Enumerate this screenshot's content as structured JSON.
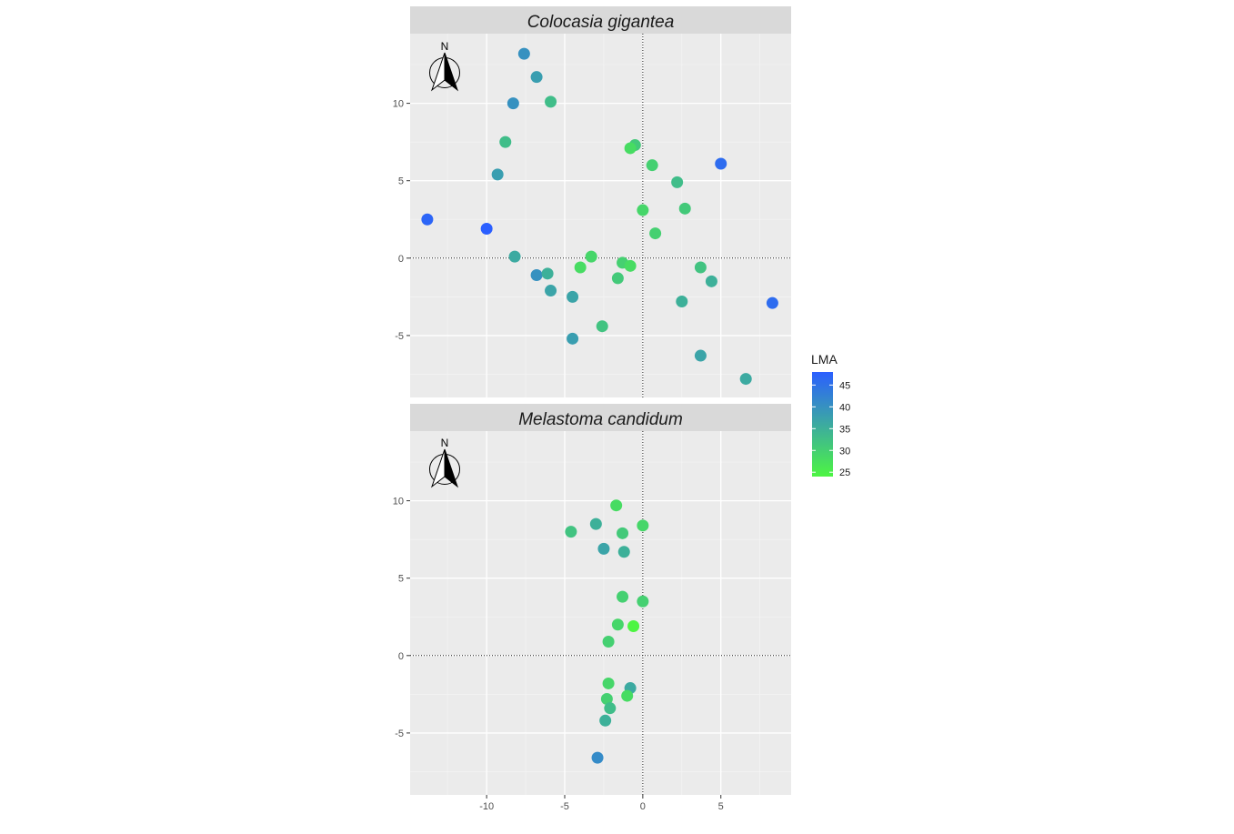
{
  "chart_data": {
    "type": "scatter",
    "xlim": [
      -14.9,
      9.5
    ],
    "ylim": [
      -9,
      14.5
    ],
    "x_ticks": [
      -10,
      -5,
      0,
      5
    ],
    "x_tick_labels": [
      "-10",
      "-5",
      "0",
      "5"
    ],
    "y_ticks": [
      -5,
      0,
      5,
      10
    ],
    "y_tick_labels": [
      "-5",
      "0",
      "5",
      "10"
    ],
    "grid": true,
    "reference_lines": {
      "x": 0,
      "y": 0,
      "style": "dotted"
    },
    "north_arrow_label": "N",
    "color_scale": {
      "title": "LMA",
      "min": 24,
      "max": 48,
      "low_color": "#4df542",
      "high_color": "#2b5fff",
      "breaks": [
        45,
        40,
        35,
        30,
        25
      ],
      "break_labels": [
        "45",
        "40",
        "35",
        "30",
        "25"
      ],
      "legend_position": "right"
    },
    "panels": [
      {
        "title": "Colocasia gigantea",
        "points": [
          {
            "x": -7.6,
            "y": 13.2,
            "lma": 40
          },
          {
            "x": -6.8,
            "y": 11.7,
            "lma": 38
          },
          {
            "x": -8.3,
            "y": 10.0,
            "lma": 40
          },
          {
            "x": -5.9,
            "y": 10.1,
            "lma": 33
          },
          {
            "x": -8.8,
            "y": 7.5,
            "lma": 33
          },
          {
            "x": -9.3,
            "y": 5.4,
            "lma": 38
          },
          {
            "x": -13.8,
            "y": 2.5,
            "lma": 47
          },
          {
            "x": -10.0,
            "y": 1.9,
            "lma": 48
          },
          {
            "x": -8.2,
            "y": 0.1,
            "lma": 36
          },
          {
            "x": -6.8,
            "y": -1.1,
            "lma": 40
          },
          {
            "x": -6.1,
            "y": -1.0,
            "lma": 35
          },
          {
            "x": -5.9,
            "y": -2.1,
            "lma": 37
          },
          {
            "x": -4.5,
            "y": -2.5,
            "lma": 37
          },
          {
            "x": -4.5,
            "y": -5.2,
            "lma": 38
          },
          {
            "x": -4.0,
            "y": -0.6,
            "lma": 28
          },
          {
            "x": -3.3,
            "y": 0.1,
            "lma": 29
          },
          {
            "x": -2.6,
            "y": -4.4,
            "lma": 32
          },
          {
            "x": -1.6,
            "y": -1.3,
            "lma": 31
          },
          {
            "x": -1.3,
            "y": -0.3,
            "lma": 30
          },
          {
            "x": -0.8,
            "y": -0.5,
            "lma": 28
          },
          {
            "x": -0.5,
            "y": 7.3,
            "lma": 31
          },
          {
            "x": -0.8,
            "y": 7.1,
            "lma": 28
          },
          {
            "x": 0.0,
            "y": 3.1,
            "lma": 29
          },
          {
            "x": 0.6,
            "y": 6.0,
            "lma": 30
          },
          {
            "x": 0.8,
            "y": 1.6,
            "lma": 30
          },
          {
            "x": 2.2,
            "y": 4.9,
            "lma": 33
          },
          {
            "x": 2.7,
            "y": 3.2,
            "lma": 31
          },
          {
            "x": 2.5,
            "y": -2.8,
            "lma": 35
          },
          {
            "x": 3.7,
            "y": -0.6,
            "lma": 32
          },
          {
            "x": 4.4,
            "y": -1.5,
            "lma": 35
          },
          {
            "x": 5.0,
            "y": 6.1,
            "lma": 46
          },
          {
            "x": 3.7,
            "y": -6.3,
            "lma": 37
          },
          {
            "x": 6.6,
            "y": -7.8,
            "lma": 36
          },
          {
            "x": 8.3,
            "y": -2.9,
            "lma": 46
          }
        ]
      },
      {
        "title": "Melastoma candidum",
        "points": [
          {
            "x": -1.7,
            "y": 9.7,
            "lma": 28
          },
          {
            "x": -3.0,
            "y": 8.5,
            "lma": 35
          },
          {
            "x": -4.6,
            "y": 8.0,
            "lma": 32
          },
          {
            "x": -1.3,
            "y": 7.9,
            "lma": 31
          },
          {
            "x": 0.0,
            "y": 8.4,
            "lma": 29
          },
          {
            "x": -2.5,
            "y": 6.9,
            "lma": 37
          },
          {
            "x": -1.2,
            "y": 6.7,
            "lma": 35
          },
          {
            "x": -1.3,
            "y": 3.8,
            "lma": 30
          },
          {
            "x": 0.0,
            "y": 3.5,
            "lma": 30
          },
          {
            "x": -1.6,
            "y": 2.0,
            "lma": 29
          },
          {
            "x": -0.6,
            "y": 1.9,
            "lma": 24
          },
          {
            "x": -2.2,
            "y": 0.9,
            "lma": 30
          },
          {
            "x": -2.2,
            "y": -1.8,
            "lma": 29
          },
          {
            "x": -0.8,
            "y": -2.1,
            "lma": 36
          },
          {
            "x": -2.3,
            "y": -2.8,
            "lma": 30
          },
          {
            "x": -1.0,
            "y": -2.6,
            "lma": 28
          },
          {
            "x": -2.1,
            "y": -3.4,
            "lma": 33
          },
          {
            "x": -2.4,
            "y": -4.2,
            "lma": 35
          },
          {
            "x": -2.9,
            "y": -6.6,
            "lma": 41
          }
        ]
      }
    ]
  }
}
